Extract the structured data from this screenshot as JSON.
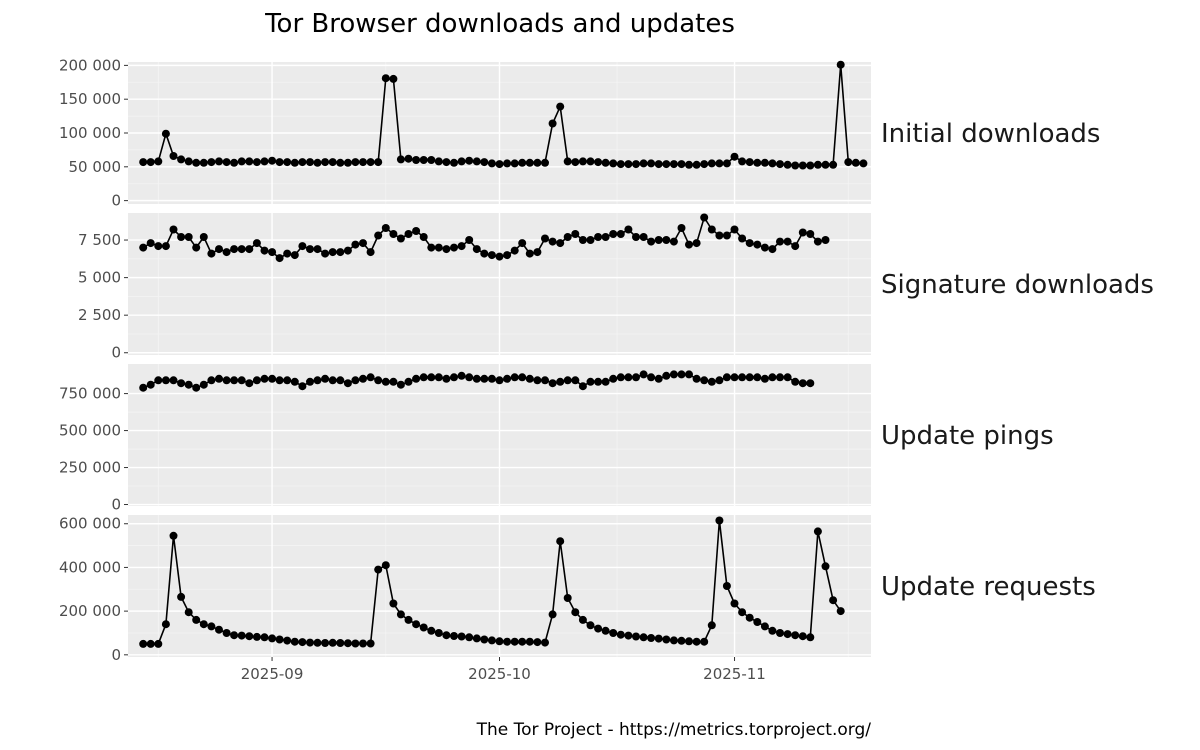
{
  "chart_data": {
    "type": "line",
    "title": "Tor Browser downloads and updates",
    "caption": "The Tor Project - https://metrics.torproject.org/",
    "x_start": "2025-08-15",
    "x_ticks": [
      {
        "date": "2025-09-01",
        "label": "2025-09"
      },
      {
        "date": "2025-10-01",
        "label": "2025-10"
      },
      {
        "date": "2025-11-01",
        "label": "2025-11"
      }
    ],
    "xlim": [
      "2025-08-13",
      "2025-11-19"
    ],
    "grid": true,
    "legend": "none",
    "facets": [
      {
        "label": "Initial downloads",
        "ylim": [
          -5000,
          205000
        ],
        "yticks": [
          0,
          50000,
          100000,
          150000,
          200000
        ],
        "ytick_labels": [
          "0",
          "50 000",
          "100 000",
          "150 000",
          "200 000"
        ],
        "values": [
          57000,
          57000,
          58000,
          99000,
          66000,
          61000,
          58000,
          56000,
          56000,
          57000,
          58000,
          57000,
          56000,
          58000,
          58000,
          57000,
          58000,
          59000,
          57000,
          57000,
          56000,
          57000,
          57000,
          56000,
          57000,
          57000,
          56000,
          56000,
          57000,
          57000,
          57000,
          57000,
          181000,
          180000,
          61000,
          62000,
          60000,
          60000,
          60000,
          58000,
          57000,
          56000,
          58000,
          59000,
          58000,
          57000,
          55000,
          54000,
          55000,
          55000,
          56000,
          56000,
          56000,
          56000,
          114000,
          139000,
          58000,
          57000,
          58000,
          58000,
          57000,
          56000,
          55000,
          54000,
          54000,
          54000,
          55000,
          55000,
          54000,
          54000,
          54000,
          54000,
          53000,
          53000,
          54000,
          55000,
          55000,
          55000,
          65000,
          58000,
          57000,
          56000,
          56000,
          55000,
          54000,
          53000,
          52000,
          52000,
          52000,
          53000,
          53000,
          53000,
          201000,
          57000,
          56000,
          55000
        ]
      },
      {
        "label": "Signature downloads",
        "ylim": [
          -150,
          9300
        ],
        "yticks": [
          0,
          2500,
          5000,
          7500
        ],
        "ytick_labels": [
          "0",
          "2 500",
          "5 000",
          "7 500"
        ],
        "values": [
          7000,
          7300,
          7100,
          7100,
          8200,
          7700,
          7700,
          7000,
          7700,
          6600,
          6900,
          6700,
          6900,
          6900,
          6900,
          7300,
          6800,
          6700,
          6300,
          6600,
          6500,
          7100,
          6900,
          6900,
          6600,
          6700,
          6700,
          6800,
          7200,
          7300,
          6700,
          7800,
          8300,
          7900,
          7600,
          7900,
          8100,
          7700,
          7000,
          7000,
          6900,
          7000,
          7100,
          7500,
          6900,
          6600,
          6500,
          6400,
          6500,
          6800,
          7300,
          6600,
          6700,
          7600,
          7400,
          7300,
          7700,
          7900,
          7500,
          7500,
          7700,
          7700,
          7900,
          7900,
          8200,
          7700,
          7700,
          7400,
          7500,
          7500,
          7400,
          8300,
          7200,
          7300,
          9000,
          8200,
          7800,
          7800,
          8200,
          7600,
          7300,
          7200,
          7000,
          6900,
          7400,
          7400,
          7100,
          8000,
          7900,
          7400,
          7500
        ]
      },
      {
        "label": "Update pings",
        "ylim": [
          -10000,
          950000
        ],
        "yticks": [
          0,
          250000,
          500000,
          750000
        ],
        "ytick_labels": [
          "0",
          "250 000",
          "500 000",
          "750 000"
        ],
        "values": [
          790000,
          810000,
          840000,
          840000,
          840000,
          820000,
          810000,
          790000,
          810000,
          840000,
          850000,
          840000,
          840000,
          840000,
          820000,
          840000,
          850000,
          850000,
          840000,
          840000,
          830000,
          800000,
          830000,
          840000,
          850000,
          840000,
          840000,
          820000,
          840000,
          850000,
          860000,
          840000,
          830000,
          830000,
          810000,
          830000,
          850000,
          860000,
          860000,
          860000,
          850000,
          860000,
          870000,
          860000,
          850000,
          850000,
          850000,
          840000,
          850000,
          860000,
          860000,
          850000,
          840000,
          840000,
          820000,
          830000,
          840000,
          840000,
          800000,
          830000,
          830000,
          830000,
          850000,
          860000,
          860000,
          860000,
          880000,
          860000,
          850000,
          870000,
          880000,
          880000,
          880000,
          850000,
          840000,
          830000,
          840000,
          860000,
          860000,
          860000,
          860000,
          860000,
          850000,
          860000,
          860000,
          860000,
          830000,
          820000,
          820000
        ]
      },
      {
        "label": "Update requests",
        "ylim": [
          -10000,
          640000
        ],
        "yticks": [
          0,
          200000,
          400000,
          600000
        ],
        "ytick_labels": [
          "0",
          "200 000",
          "400 000",
          "600 000"
        ],
        "values": [
          50000,
          50000,
          50000,
          140000,
          545000,
          265000,
          195000,
          160000,
          140000,
          130000,
          115000,
          100000,
          90000,
          88000,
          85000,
          82000,
          80000,
          75000,
          70000,
          65000,
          60000,
          58000,
          56000,
          55000,
          54000,
          55000,
          54000,
          53000,
          52000,
          52000,
          52000,
          390000,
          410000,
          235000,
          185000,
          160000,
          140000,
          125000,
          110000,
          100000,
          90000,
          86000,
          84000,
          80000,
          75000,
          70000,
          66000,
          62000,
          60000,
          60000,
          60000,
          60000,
          58000,
          56000,
          185000,
          520000,
          260000,
          195000,
          160000,
          135000,
          120000,
          110000,
          100000,
          92000,
          88000,
          84000,
          80000,
          77000,
          74000,
          70000,
          66000,
          64000,
          62000,
          60000,
          60000,
          135000,
          615000,
          315000,
          235000,
          195000,
          170000,
          150000,
          130000,
          110000,
          100000,
          95000,
          90000,
          85000,
          80000,
          565000,
          405000,
          250000,
          200000
        ]
      }
    ]
  }
}
